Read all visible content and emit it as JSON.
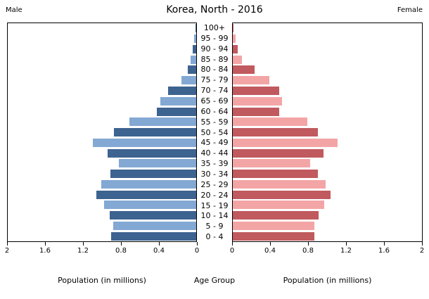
{
  "header": {
    "title": "Korea, North - 2016",
    "left_corner_label": "Male",
    "right_corner_label": "Female"
  },
  "axes": {
    "left_tick_labels": [
      "2",
      "1.6",
      "1.2",
      "0.8",
      "0.4",
      "0"
    ],
    "right_tick_labels": [
      "0",
      "0.4",
      "0.8",
      "1.2",
      "1.6",
      "2"
    ],
    "left_axis_label": "Population (in millions)",
    "center_axis_label": "Age Group",
    "right_axis_label": "Population (in millions)"
  },
  "colors": {
    "male_dark": "#3d6390",
    "male_light": "#82a8d3",
    "female_dark": "#c05a5e",
    "female_light": "#f3a5a6",
    "axis": "#000000",
    "background": "#ffffff"
  },
  "chart_data": {
    "type": "bar",
    "subtype": "population-pyramid",
    "title": "Korea, North - 2016",
    "categories_top_to_bottom": [
      "100+",
      "95 - 99",
      "90 - 94",
      "85 - 89",
      "80 - 84",
      "75 - 79",
      "70 - 74",
      "65 - 69",
      "60 - 64",
      "55 - 59",
      "50 - 54",
      "45 - 49",
      "40 - 44",
      "35 - 39",
      "30 - 34",
      "25 - 29",
      "20 - 24",
      "15 - 19",
      "10 - 14",
      "5 - 9",
      "0 - 4"
    ],
    "series": [
      {
        "name": "Male",
        "side": "left",
        "values_top_to_bottom": [
          0.01,
          0.02,
          0.04,
          0.06,
          0.09,
          0.16,
          0.3,
          0.38,
          0.42,
          0.71,
          0.87,
          1.1,
          0.94,
          0.82,
          0.91,
          1.01,
          1.06,
          0.98,
          0.92,
          0.88,
          0.9
        ]
      },
      {
        "name": "Female",
        "side": "right",
        "values_top_to_bottom": [
          0.01,
          0.03,
          0.05,
          0.1,
          0.23,
          0.39,
          0.49,
          0.52,
          0.49,
          0.79,
          0.9,
          1.11,
          0.96,
          0.82,
          0.9,
          0.98,
          1.03,
          0.97,
          0.91,
          0.86,
          0.86
        ]
      }
    ],
    "xlabel": "Population (in millions)",
    "center_label": "Age Group",
    "xlim": [
      0,
      2
    ],
    "x_tick_step": 0.4,
    "units": "millions",
    "grid": false,
    "legend_position": "none",
    "bar_color_alternation": "rows alternate dark (even index from top: 100+, 90-94, ...) and light (odd index: 95-99, 85-89, ...)"
  }
}
